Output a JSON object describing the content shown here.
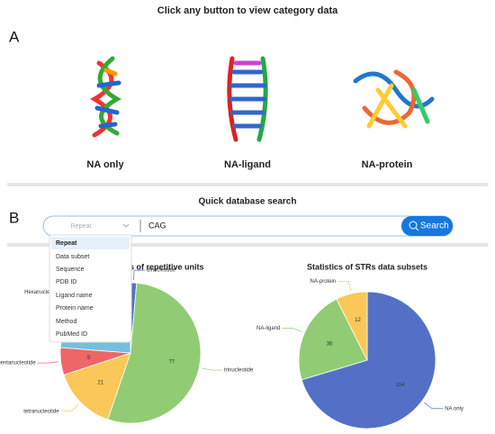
{
  "header": {
    "title": "Click any button to view category data"
  },
  "section_a": {
    "letter": "A",
    "buttons": [
      "NA only",
      "NA-ligand",
      "NA-protein"
    ]
  },
  "section_b": {
    "letter": "B",
    "title": "Quick database search",
    "search": {
      "field": "Repeat",
      "query": "CAG",
      "button": "Search"
    },
    "dropdown": [
      "Repeat",
      "Data subset",
      "Sequence",
      "PDB ID",
      "Ligand name",
      "Protein name",
      "Method",
      "PubMed ID"
    ]
  },
  "chart_data": [
    {
      "type": "pie",
      "title": "Statistics of lengths of repetitive units",
      "categories": [
        "dinucleotide",
        "trinucleotide",
        "tetranucleotide",
        "pentanucleotide",
        "Hexanucleotide"
      ],
      "values": [
        2,
        77,
        21,
        9,
        34
      ],
      "colors": [
        "#5470c6",
        "#91cc75",
        "#fac858",
        "#ee6666",
        "#73c0de"
      ]
    },
    {
      "type": "pie",
      "title": "Statistics of STRs data subsets",
      "categories": [
        "NA only",
        "NA-ligand",
        "NA-protein"
      ],
      "values": [
        114,
        36,
        12
      ],
      "colors": [
        "#5470c6",
        "#91cc75",
        "#fac858"
      ]
    }
  ]
}
